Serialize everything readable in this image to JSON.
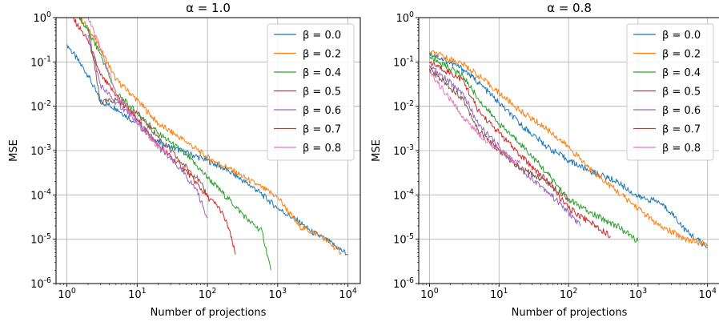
{
  "chart_data": [
    {
      "type": "line",
      "title": "α = 1.0",
      "xlabel": "Number of projections",
      "ylabel": "MSE",
      "xscale": "log",
      "yscale": "log",
      "xlim": [
        0.7,
        15000
      ],
      "ylim": [
        1e-06,
        1
      ],
      "grid": true,
      "legend_position": "top-right",
      "x_tick_labels": [
        "10^0",
        "10^1",
        "10^2",
        "10^3",
        "10^4"
      ],
      "y_tick_labels": [
        "10^-6",
        "10^-5",
        "10^-4",
        "10^-3",
        "10^-2",
        "10^-1",
        "10^0"
      ],
      "series": [
        {
          "name": "β = 0.0",
          "color": "#1f77b4",
          "points": [
            [
              1,
              0.25
            ],
            [
              2,
              0.05
            ],
            [
              3,
              0.013
            ],
            [
              5,
              0.009
            ],
            [
              10,
              0.004
            ],
            [
              20,
              0.0015
            ],
            [
              50,
              0.0009
            ],
            [
              100,
              0.0006
            ],
            [
              200,
              0.00035
            ],
            [
              500,
              0.00013
            ],
            [
              1000,
              5e-05
            ],
            [
              2000,
              2.5e-05
            ],
            [
              3000,
              1.5e-05
            ],
            [
              5000,
              9.5e-06
            ],
            [
              10000,
              4.5e-06
            ]
          ]
        },
        {
          "name": "β = 0.2",
          "color": "#ff7f0e",
          "points": [
            [
              1.5,
              1.0
            ],
            [
              2,
              0.6
            ],
            [
              3,
              0.2
            ],
            [
              5,
              0.04
            ],
            [
              10,
              0.014
            ],
            [
              20,
              0.004
            ],
            [
              50,
              0.0016
            ],
            [
              100,
              0.0007
            ],
            [
              200,
              0.0004
            ],
            [
              500,
              0.00017
            ],
            [
              1000,
              9e-05
            ],
            [
              2000,
              2e-05
            ],
            [
              4000,
              1.2e-05
            ],
            [
              8000,
              5e-06
            ]
          ]
        },
        {
          "name": "β = 0.4",
          "color": "#2ca02c",
          "points": [
            [
              1.5,
              1.0
            ],
            [
              2,
              0.5
            ],
            [
              3,
              0.15
            ],
            [
              5,
              0.02
            ],
            [
              10,
              0.007
            ],
            [
              20,
              0.0025
            ],
            [
              50,
              0.0008
            ],
            [
              100,
              0.00025
            ],
            [
              200,
              8e-05
            ],
            [
              400,
              2.5e-05
            ],
            [
              600,
              1.5e-05
            ],
            [
              800,
              2e-06
            ]
          ]
        },
        {
          "name": "β = 0.5",
          "color": "#d62728",
          "points": [
            [
              1.2,
              1.0
            ],
            [
              2,
              0.3
            ],
            [
              3,
              0.05
            ],
            [
              5,
              0.018
            ],
            [
              10,
              0.005
            ],
            [
              20,
              0.0013
            ],
            [
              50,
              0.00035
            ],
            [
              100,
              9e-05
            ],
            [
              150,
              5e-05
            ],
            [
              200,
              1.8e-05
            ],
            [
              250,
              4.5e-06
            ]
          ]
        },
        {
          "name": "β = 0.6",
          "color": "#9467bd",
          "points": [
            [
              2,
              0.4
            ],
            [
              3,
              0.03
            ],
            [
              5,
              0.012
            ],
            [
              10,
              0.005
            ],
            [
              20,
              0.0012
            ],
            [
              40,
              0.0004
            ],
            [
              70,
              0.00013
            ],
            [
              100,
              3e-05
            ]
          ]
        },
        {
          "name": "β = 0.7",
          "color": "#8c564b",
          "points": [
            [
              2,
              0.6
            ],
            [
              3,
              0.012
            ],
            [
              5,
              0.014
            ],
            [
              10,
              0.007
            ],
            [
              20,
              0.002
            ],
            [
              40,
              0.0006
            ],
            [
              70,
              0.00025
            ],
            [
              100,
              0.0001
            ]
          ]
        },
        {
          "name": "β = 0.8",
          "color": "#e377c2",
          "points": [
            [
              2,
              1.0
            ],
            [
              3,
              0.2
            ],
            [
              5,
              0.02
            ],
            [
              10,
              0.004
            ],
            [
              20,
              0.0012
            ],
            [
              30,
              0.0008
            ]
          ]
        }
      ]
    },
    {
      "type": "line",
      "title": "α = 0.8",
      "xlabel": "Number of projections",
      "ylabel": "MSE",
      "xscale": "log",
      "yscale": "log",
      "xlim": [
        0.7,
        15000
      ],
      "ylim": [
        1e-06,
        1
      ],
      "grid": true,
      "legend_position": "top-right",
      "x_tick_labels": [
        "10^0",
        "10^1",
        "10^2",
        "10^3",
        "10^4"
      ],
      "y_tick_labels": [
        "10^-6",
        "10^-5",
        "10^-4",
        "10^-3",
        "10^-2",
        "10^-1",
        "10^0"
      ],
      "series": [
        {
          "name": "β = 0.0",
          "color": "#1f77b4",
          "points": [
            [
              1,
              0.16
            ],
            [
              3,
              0.07
            ],
            [
              5,
              0.035
            ],
            [
              10,
              0.012
            ],
            [
              20,
              0.004
            ],
            [
              50,
              0.0012
            ],
            [
              100,
              0.0006
            ],
            [
              200,
              0.00035
            ],
            [
              500,
              0.0002
            ],
            [
              1000,
              9e-05
            ],
            [
              2000,
              7e-05
            ],
            [
              3000,
              4e-05
            ],
            [
              5000,
              1.5e-05
            ],
            [
              10000,
              6.5e-06
            ]
          ]
        },
        {
          "name": "β = 0.2",
          "color": "#ff7f0e",
          "points": [
            [
              1,
              0.17
            ],
            [
              3,
              0.09
            ],
            [
              5,
              0.05
            ],
            [
              10,
              0.02
            ],
            [
              20,
              0.008
            ],
            [
              50,
              0.003
            ],
            [
              100,
              0.0012
            ],
            [
              200,
              0.0004
            ],
            [
              500,
              0.00012
            ],
            [
              1000,
              5e-05
            ],
            [
              2000,
              2e-05
            ],
            [
              5000,
              1e-05
            ],
            [
              10000,
              7.5e-06
            ]
          ]
        },
        {
          "name": "β = 0.4",
          "color": "#2ca02c",
          "points": [
            [
              1,
              0.13
            ],
            [
              3,
              0.05
            ],
            [
              5,
              0.015
            ],
            [
              10,
              0.004
            ],
            [
              20,
              0.0015
            ],
            [
              50,
              0.0003
            ],
            [
              100,
              8e-05
            ],
            [
              200,
              4e-05
            ],
            [
              500,
              2e-05
            ],
            [
              1000,
              9e-06
            ]
          ]
        },
        {
          "name": "β = 0.5",
          "color": "#d62728",
          "points": [
            [
              1,
              0.1
            ],
            [
              3,
              0.04
            ],
            [
              5,
              0.008
            ],
            [
              10,
              0.0025
            ],
            [
              20,
              0.0008
            ],
            [
              50,
              0.0002
            ],
            [
              100,
              5e-05
            ],
            [
              200,
              2.5e-05
            ],
            [
              400,
              1.2e-05
            ]
          ]
        },
        {
          "name": "β = 0.6",
          "color": "#9467bd",
          "points": [
            [
              1,
              0.08
            ],
            [
              3,
              0.02
            ],
            [
              5,
              0.004
            ],
            [
              10,
              0.0012
            ],
            [
              20,
              0.0004
            ],
            [
              50,
              0.00012
            ],
            [
              100,
              4e-05
            ],
            [
              150,
              2e-05
            ]
          ]
        },
        {
          "name": "β = 0.7",
          "color": "#8c564b",
          "points": [
            [
              1,
              0.07
            ],
            [
              3,
              0.015
            ],
            [
              5,
              0.003
            ],
            [
              10,
              0.001
            ],
            [
              20,
              0.0004
            ],
            [
              50,
              0.0002
            ],
            [
              100,
              8e-05
            ]
          ]
        },
        {
          "name": "β = 0.8",
          "color": "#e377c2",
          "points": [
            [
              1,
              0.06
            ],
            [
              3,
              0.006
            ],
            [
              5,
              0.0025
            ],
            [
              10,
              0.001
            ],
            [
              20,
              0.0005
            ]
          ]
        }
      ]
    }
  ]
}
